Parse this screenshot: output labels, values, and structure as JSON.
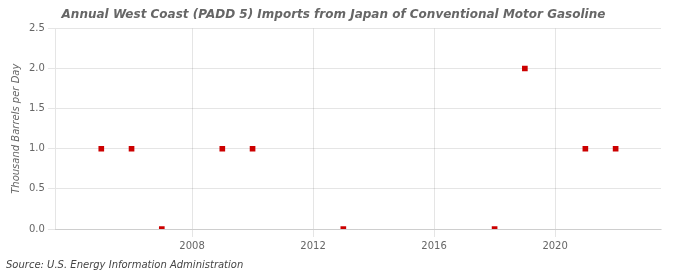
{
  "chart_data": {
    "type": "scatter",
    "title": "Annual West Coast (PADD 5) Imports from Japan of Conventional Motor Gasoline",
    "ylabel": "Thousand Barrels per Day",
    "source": "Source: U.S. Energy Information Administration",
    "x": [
      2005,
      2006,
      2007,
      2009,
      2010,
      2013,
      2018,
      2019,
      2021,
      2022
    ],
    "values": [
      1.0,
      1.0,
      0.0,
      1.0,
      1.0,
      0.0,
      0.0,
      2.0,
      1.0,
      1.0
    ],
    "color": "#cc0000",
    "marker": "square",
    "xlim": [
      2003.5,
      2023.5
    ],
    "xticks": [
      2008,
      2012,
      2016,
      2020
    ],
    "ylim": [
      0.0,
      2.5
    ],
    "yticks": [
      {
        "value": 0.0,
        "label": "0.0"
      },
      0.5,
      {
        "value": 1.0,
        "label": "1.0"
      },
      1.5,
      {
        "value": 2.0,
        "label": "2.0"
      },
      2.5
    ],
    "grid": true
  }
}
